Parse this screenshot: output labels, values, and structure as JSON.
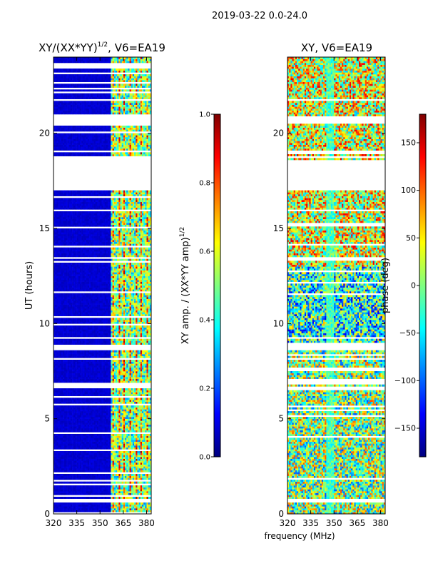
{
  "figure": {
    "suptitle": "2019-03-22 0.0-24.0",
    "xlabel_shared": "frequency (MHz)"
  },
  "chart_data": [
    {
      "type": "heatmap",
      "title": "XY/(XX*YY)",
      "title_exponent": "1/2",
      "title_suffix": ", V6=EA19",
      "ylabel": "UT (hours)",
      "xlabel": "",
      "xlim": [
        320,
        383
      ],
      "ylim": [
        0,
        24
      ],
      "xticks": [
        320,
        335,
        350,
        365,
        380
      ],
      "yticks": [
        0,
        5,
        10,
        15,
        20
      ],
      "colorbar": {
        "label": "XY amp. / (XX*YY amp)",
        "label_exponent": "1/2",
        "range": [
          0.0,
          1.0
        ],
        "ticks": [
          "0.0",
          "0.2",
          "0.4",
          "0.6",
          "0.8",
          "1.0"
        ]
      },
      "gaps_hours": [
        [
          17.0,
          18.6
        ],
        [
          20.5,
          20.95
        ],
        [
          8.6,
          8.95
        ],
        [
          0.6,
          0.85
        ]
      ],
      "channel_bands": [
        {
          "range_mhz": [
            320,
            357
          ],
          "typical_value": 0.05
        },
        {
          "range_mhz": [
            357,
            383
          ],
          "typical_value": 0.45
        }
      ]
    },
    {
      "type": "heatmap",
      "title": "XY, V6=EA19",
      "ylabel": "",
      "xlabel": "frequency (MHz)",
      "xlim": [
        320,
        383
      ],
      "ylim": [
        0,
        24
      ],
      "xticks": [
        320,
        335,
        350,
        365,
        380
      ],
      "yticks": [
        0,
        5,
        10,
        15,
        20
      ],
      "colorbar": {
        "label": "phase (deg)",
        "range": [
          -180,
          180
        ],
        "ticks": [
          "150",
          "100",
          "50",
          "0",
          "−50",
          "−100",
          "−150"
        ],
        "tick_values": [
          150,
          100,
          50,
          0,
          -50,
          -100,
          -150
        ]
      },
      "gaps_hours": [
        [
          17.0,
          18.6
        ],
        [
          20.5,
          20.95
        ],
        [
          8.6,
          8.95
        ],
        [
          0.6,
          0.85
        ]
      ]
    }
  ]
}
